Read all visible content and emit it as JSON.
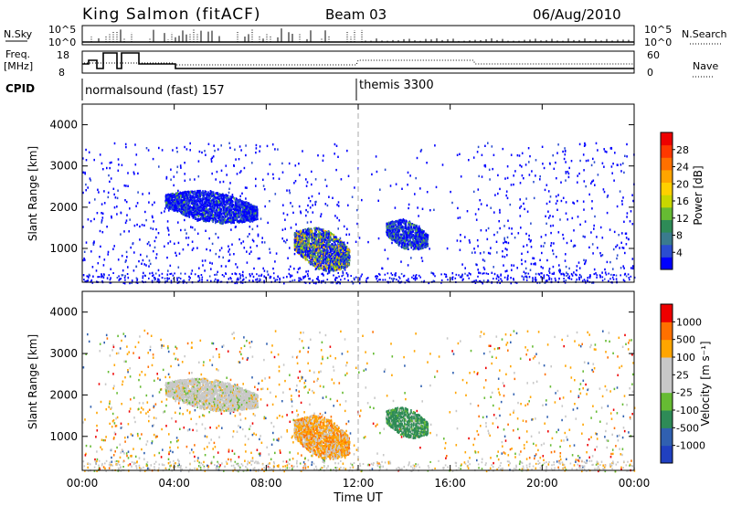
{
  "header": {
    "station": "King Salmon (fitACF)",
    "beam": "Beam 03",
    "date": "06/Aug/2010"
  },
  "status_panel": {
    "nsky_label": "N.Sky",
    "nsky_ticks": [
      "10^5",
      "10^0"
    ],
    "nsearch_label": "N.Search",
    "nsearch_ticks": [
      "10^5",
      "10^0"
    ],
    "freq_label_1": "Freq.",
    "freq_label_2": "[MHz]",
    "freq_ticks": [
      "18",
      "8"
    ],
    "nave_label": "Nave",
    "nave_ticks": [
      "60",
      "0"
    ],
    "cpid_label": "CPID",
    "cpid_segments": [
      {
        "label": "normalsound (fast) 157",
        "start_hour": 0
      },
      {
        "label": "themis 3300",
        "start_hour": 12
      }
    ]
  },
  "chart_data": [
    {
      "type": "heatmap",
      "title": "",
      "xlabel": "Time UT",
      "ylabel": "Slant Range [km]",
      "xlim": [
        0,
        24
      ],
      "ylim": [
        180,
        4500
      ],
      "x_ticks": [
        "00:00",
        "04:00",
        "08:00",
        "12:00",
        "16:00",
        "20:00",
        "00:00"
      ],
      "y_ticks": [
        "1000",
        "2000",
        "3000",
        "4000"
      ],
      "colorbar": {
        "label": "Power [dB]",
        "ticks": [
          "4",
          "8",
          "12",
          "16",
          "20",
          "24",
          "28"
        ],
        "colors": [
          "#0000ff",
          "#2b4dd0",
          "#3a7b8e",
          "#2e8b57",
          "#66bb33",
          "#c8d700",
          "#ffd000",
          "#ffa500",
          "#ff7000",
          "#ff3800",
          "#ee0000"
        ]
      },
      "echo_regions": [
        {
          "t_start": 3.6,
          "t_end": 7.6,
          "range_low": 1650,
          "range_high": 2400,
          "level": "low-mid"
        },
        {
          "t_start": 9.2,
          "t_end": 11.6,
          "range_low": 500,
          "range_high": 1500,
          "level": "high"
        },
        {
          "t_start": 13.2,
          "t_end": 15.0,
          "range_low": 1000,
          "range_high": 1700,
          "level": "mid"
        }
      ]
    },
    {
      "type": "heatmap",
      "title": "",
      "xlabel": "Time UT",
      "ylabel": "Slant Range [km]",
      "xlim": [
        0,
        24
      ],
      "ylim": [
        180,
        4500
      ],
      "x_ticks": [
        "00:00",
        "04:00",
        "08:00",
        "12:00",
        "16:00",
        "20:00",
        "00:00"
      ],
      "y_ticks": [
        "1000",
        "2000",
        "3000",
        "4000"
      ],
      "colorbar": {
        "label": "Velocity [m s⁻¹]",
        "ticks": [
          "1000",
          "500",
          "100",
          "25",
          "-25",
          "-100",
          "-500",
          "-1000"
        ],
        "colors": [
          "#2040c0",
          "#3060b0",
          "#2e8b57",
          "#66bb33",
          "#c8c8c8",
          "#c8c8c8",
          "#ffa500",
          "#ff7000",
          "#ee0000"
        ]
      },
      "echo_regions": [
        {
          "t_start": 3.6,
          "t_end": 7.6,
          "range_low": 1650,
          "range_high": 2400,
          "level": "ground"
        },
        {
          "t_start": 9.2,
          "t_end": 11.6,
          "range_low": 500,
          "range_high": 1500,
          "level": "mixed"
        },
        {
          "t_start": 13.2,
          "t_end": 15.0,
          "range_low": 1000,
          "range_high": 1700,
          "level": "negative"
        }
      ]
    }
  ]
}
